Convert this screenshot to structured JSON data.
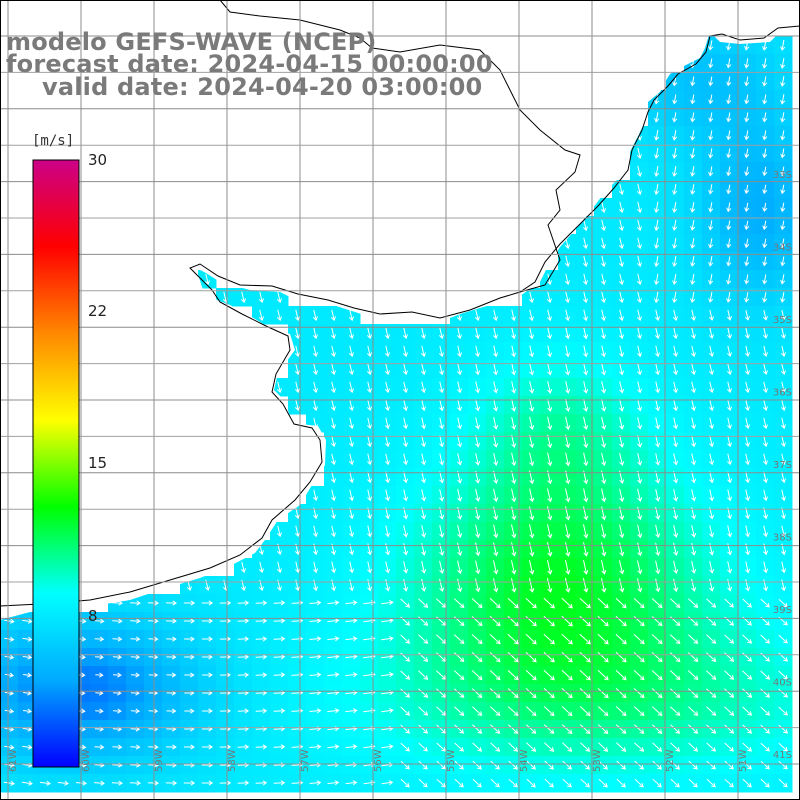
{
  "title": {
    "line1": "modelo GEFS-WAVE (NCEP)",
    "line2": "forecast date: 2024-04-15 00:00:00",
    "line3": "valid date: 2024-04-20 03:00:00"
  },
  "colorbar": {
    "unit": "[m/s]",
    "ticks": [
      {
        "value": 30,
        "label": "30"
      },
      {
        "value": 22,
        "label": "22"
      },
      {
        "value": 15,
        "label": "15"
      },
      {
        "value": 8,
        "label": "8"
      }
    ],
    "min": 0,
    "max": 30,
    "colors": [
      "#0000ff",
      "#00aaff",
      "#00ffff",
      "#00ff00",
      "#ffff00",
      "#ff8800",
      "#ff0000",
      "#cc0088"
    ]
  },
  "map": {
    "ocean_base_color": "#22c8f0",
    "land_color": "#ffffff",
    "coast_color": "#000000",
    "grid_color": "#888888",
    "lat_labels": [
      "33S",
      "34S",
      "35S",
      "36S",
      "37S",
      "38S",
      "39S",
      "40S",
      "41S"
    ],
    "lon_labels": [
      "61W",
      "60W",
      "59W",
      "58W",
      "57W",
      "56W",
      "55W",
      "54W",
      "53W",
      "52W",
      "51W"
    ]
  }
}
